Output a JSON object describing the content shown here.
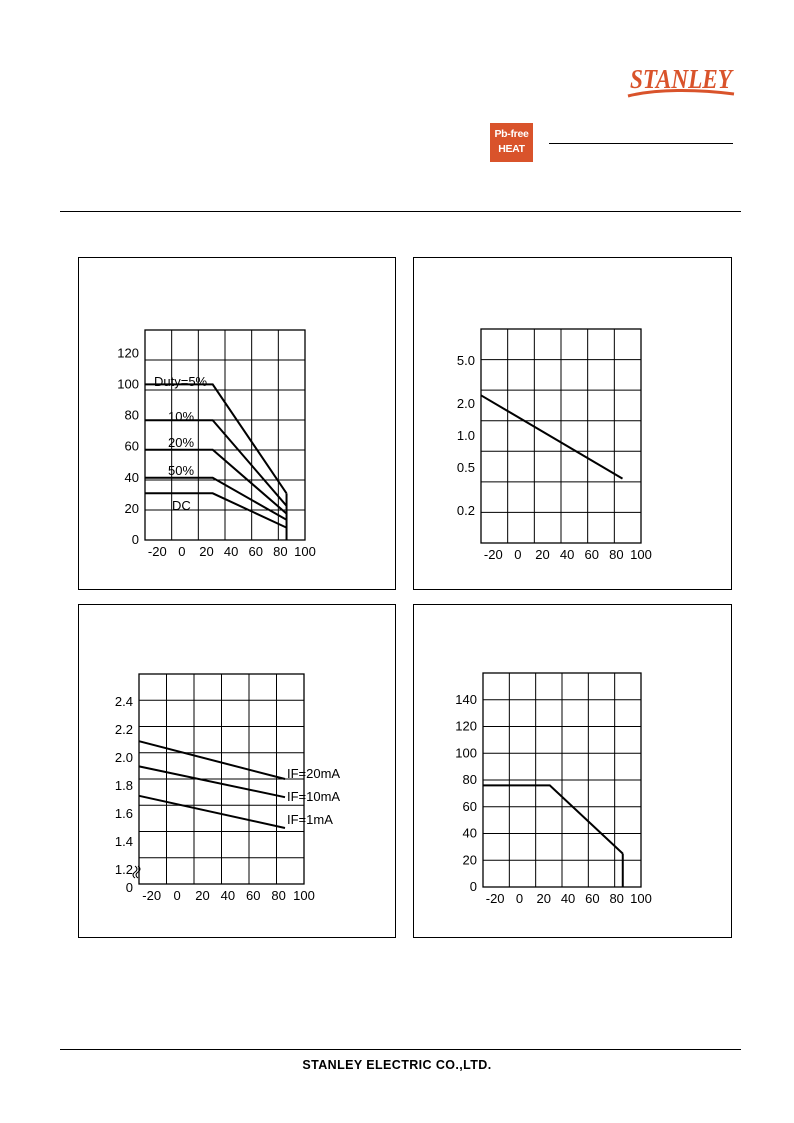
{
  "header": {
    "logo_text": "STANLEY",
    "badge": {
      "line1": "Pb-free",
      "line2": "HEAT",
      "color": "#d9532b"
    },
    "brand_color": "#d9532b"
  },
  "footer": {
    "company": "STANLEY ELECTRIC CO.,LTD."
  },
  "chart_data": [
    {
      "type": "line",
      "x_ticks": [
        "-20",
        "0",
        "20",
        "40",
        "60",
        "80",
        "100"
      ],
      "y_ticks": [
        "0",
        "20",
        "40",
        "60",
        "80",
        "100",
        "120"
      ],
      "xlim": [
        -30,
        100
      ],
      "ylim": [
        0,
        135
      ],
      "series": [
        {
          "name": "Duty=5%",
          "x": [
            -30,
            25,
            85
          ],
          "y": [
            100,
            100,
            30
          ]
        },
        {
          "name": "10%",
          "x": [
            -30,
            25,
            85
          ],
          "y": [
            77,
            77,
            22
          ]
        },
        {
          "name": "20%",
          "x": [
            -30,
            25,
            85
          ],
          "y": [
            58,
            58,
            17
          ]
        },
        {
          "name": "50%",
          "x": [
            -30,
            25,
            85
          ],
          "y": [
            40,
            40,
            13
          ]
        },
        {
          "name": "DC",
          "x": [
            -30,
            25,
            85
          ],
          "y": [
            30,
            30,
            8
          ]
        }
      ],
      "cutoff_x": 85
    },
    {
      "type": "line",
      "y_scale": "log",
      "x_ticks": [
        "-20",
        "0",
        "20",
        "40",
        "60",
        "80",
        "100"
      ],
      "y_ticks": [
        "0.2",
        "0.5",
        "1.0",
        "2.0",
        "5.0"
      ],
      "xlim": [
        -30,
        100
      ],
      "ylim": [
        0.1,
        10
      ],
      "series": [
        {
          "name": "",
          "x": [
            -30,
            85
          ],
          "y": [
            2.4,
            0.4
          ]
        }
      ]
    },
    {
      "type": "line",
      "x_ticks": [
        "-20",
        "0",
        "20",
        "40",
        "60",
        "80",
        "100"
      ],
      "y_ticks": [
        "0",
        "1.2",
        "1.4",
        "1.6",
        "1.8",
        "2.0",
        "2.2",
        "2.4"
      ],
      "xlim": [
        -30,
        100
      ],
      "ylim": [
        1.1,
        2.6
      ],
      "axis_break": true,
      "series": [
        {
          "name": "IF=20mA",
          "x": [
            -30,
            85
          ],
          "y": [
            2.12,
            1.85
          ]
        },
        {
          "name": "IF=10mA",
          "x": [
            -30,
            85
          ],
          "y": [
            1.94,
            1.72
          ]
        },
        {
          "name": "IF=1mA",
          "x": [
            -30,
            85
          ],
          "y": [
            1.73,
            1.5
          ]
        }
      ]
    },
    {
      "type": "line",
      "x_ticks": [
        "-20",
        "0",
        "20",
        "40",
        "60",
        "80",
        "100"
      ],
      "y_ticks": [
        "0",
        "20",
        "40",
        "60",
        "80",
        "100",
        "120",
        "140"
      ],
      "xlim": [
        -30,
        100
      ],
      "ylim": [
        0,
        160
      ],
      "series": [
        {
          "name": "",
          "x": [
            -30,
            25,
            85
          ],
          "y": [
            76,
            76,
            25
          ]
        }
      ],
      "cutoff_x": 85
    }
  ]
}
